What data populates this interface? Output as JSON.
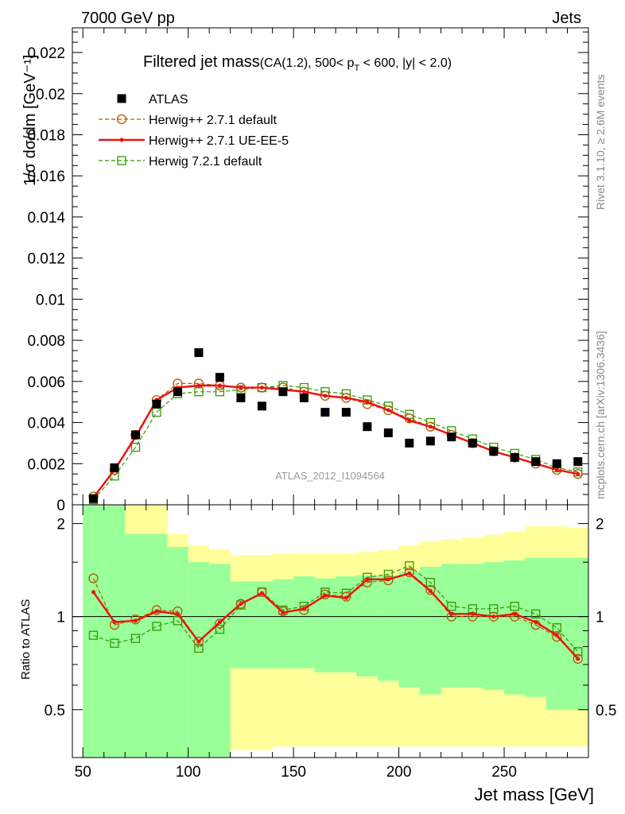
{
  "header": {
    "left": "7000 GeV pp",
    "right": "Jets"
  },
  "side_labels": {
    "rivet": "Rivet 3.1.10, ≥ 2.6M events",
    "mcplots": "mcplots.cern.ch [arXiv:1306.3436]"
  },
  "chart_data": [
    {
      "type": "scatter",
      "title_main": "Filtered jet mass",
      "title_sub_a": "(CA(1.2), 500< p",
      "title_sub_b": "T",
      "title_sub_c": " < 600, |y| < 2.0)",
      "ylabel": "1/σ dσ/dm [GeV⁻¹]",
      "watermark": "ATLAS_2012_I1094564",
      "ylim": [
        0,
        0.0232
      ],
      "xlim": [
        45,
        290
      ],
      "yticks": [
        0,
        0.002,
        0.004,
        0.006,
        0.008,
        0.01,
        0.012,
        0.014,
        0.016,
        0.018,
        0.02,
        0.022
      ],
      "ytick_labels": [
        "0",
        "0.002",
        "0.004",
        "0.006",
        "0.008",
        "0.01",
        "0.012",
        "0.014",
        "0.016",
        "0.018",
        "0.02",
        "0.022"
      ],
      "legend_position": "top-left",
      "x": [
        55,
        65,
        75,
        85,
        95,
        105,
        115,
        125,
        135,
        145,
        155,
        165,
        175,
        185,
        195,
        205,
        215,
        225,
        235,
        245,
        255,
        265,
        275,
        285
      ],
      "series": [
        {
          "name": "ATLAS",
          "style": "data",
          "color": "#000000",
          "values": [
            0.0003,
            0.0018,
            0.0034,
            0.0049,
            0.0055,
            0.0074,
            0.0062,
            0.0052,
            0.0048,
            0.0055,
            0.0052,
            0.0045,
            0.0045,
            0.0038,
            0.0035,
            0.003,
            0.0031,
            0.0033,
            0.003,
            0.0026,
            0.0023,
            0.0021,
            0.002,
            0.0021
          ]
        },
        {
          "name": "Herwig++ 2.7.1 default",
          "style": "circle-dashed",
          "color": "#b35900",
          "values": [
            0.0004,
            0.0017,
            0.0034,
            0.0051,
            0.0059,
            0.0059,
            0.0058,
            0.0057,
            0.0057,
            0.0057,
            0.0055,
            0.0053,
            0.0052,
            0.0049,
            0.0046,
            0.0042,
            0.0038,
            0.0034,
            0.003,
            0.0026,
            0.0023,
            0.002,
            0.0017,
            0.0015
          ]
        },
        {
          "name": "Herwig++ 2.7.1 UE-EE-5",
          "style": "solid",
          "color": "#ee1111",
          "values": [
            0.00035,
            0.0017,
            0.0033,
            0.0051,
            0.0057,
            0.0058,
            0.0058,
            0.0057,
            0.0057,
            0.0056,
            0.0055,
            0.0053,
            0.0052,
            0.005,
            0.0046,
            0.0041,
            0.0038,
            0.0034,
            0.003,
            0.0026,
            0.0023,
            0.002,
            0.0017,
            0.0015
          ]
        },
        {
          "name": "Herwig 7.2.1 default",
          "style": "square-dashed",
          "color": "#339900",
          "values": [
            0.00025,
            0.0014,
            0.0028,
            0.0045,
            0.0054,
            0.0055,
            0.0055,
            0.0056,
            0.0057,
            0.0058,
            0.0057,
            0.0055,
            0.0054,
            0.0051,
            0.0048,
            0.0044,
            0.004,
            0.0036,
            0.0032,
            0.0028,
            0.0025,
            0.0022,
            0.0018,
            0.0016
          ]
        }
      ]
    },
    {
      "type": "line",
      "ylabel": "Ratio to ATLAS",
      "xlabel": "Jet mass [GeV]",
      "ylim": [
        0.35,
        2.3
      ],
      "xlim": [
        45,
        290
      ],
      "xticks": [
        50,
        100,
        150,
        200,
        250
      ],
      "xtick_labels": [
        "50",
        "100",
        "150",
        "200",
        "250"
      ],
      "yticks": [
        0.5,
        1,
        2
      ],
      "ytick_labels": [
        "0.5",
        "1",
        "2"
      ],
      "reference_line": 1,
      "band_edges": [
        50,
        60,
        70,
        80,
        90,
        100,
        110,
        120,
        130,
        140,
        150,
        160,
        170,
        180,
        190,
        200,
        210,
        220,
        230,
        240,
        250,
        260,
        270,
        280,
        290
      ],
      "band_yellow": {
        "color": "#ffff99",
        "lo": [
          0.35,
          0.35,
          0.35,
          0.35,
          0.56,
          0.56,
          0.4,
          0.37,
          0.37,
          0.38,
          0.38,
          0.38,
          0.38,
          0.38,
          0.38,
          0.38,
          0.38,
          0.38,
          0.38,
          0.38,
          0.38,
          0.38,
          0.38,
          0.38
        ],
        "hi": [
          2.3,
          2.3,
          2.3,
          2.3,
          1.85,
          1.7,
          1.65,
          1.58,
          1.58,
          1.6,
          1.6,
          1.6,
          1.6,
          1.62,
          1.64,
          1.7,
          1.75,
          1.78,
          1.8,
          1.84,
          1.88,
          1.96,
          1.96,
          1.94
        ]
      },
      "band_green": {
        "color": "#99ff99",
        "lo": [
          0.35,
          0.35,
          0.35,
          0.35,
          0.35,
          0.35,
          0.35,
          0.68,
          0.68,
          0.68,
          0.68,
          0.66,
          0.66,
          0.64,
          0.62,
          0.59,
          0.56,
          0.59,
          0.59,
          0.58,
          0.56,
          0.55,
          0.5,
          0.5
        ],
        "hi": [
          2.3,
          2.3,
          1.85,
          1.85,
          1.68,
          1.5,
          1.48,
          1.3,
          1.3,
          1.32,
          1.35,
          1.33,
          1.35,
          1.36,
          1.36,
          1.4,
          1.45,
          1.48,
          1.48,
          1.5,
          1.52,
          1.55,
          1.55,
          1.55
        ]
      },
      "x": [
        55,
        65,
        75,
        85,
        95,
        105,
        115,
        125,
        135,
        145,
        155,
        165,
        175,
        185,
        195,
        205,
        215,
        225,
        235,
        245,
        255,
        265,
        275,
        285
      ],
      "series": [
        {
          "name": "Herwig++ 2.7.1 default",
          "style": "circle-dashed",
          "color": "#b35900",
          "values": [
            1.33,
            0.94,
            0.98,
            1.05,
            1.04,
            0.83,
            0.95,
            1.1,
            1.2,
            1.04,
            1.05,
            1.18,
            1.16,
            1.29,
            1.31,
            1.39,
            1.22,
            1.0,
            1.0,
            1.0,
            1.0,
            0.94,
            0.86,
            0.73
          ]
        },
        {
          "name": "Herwig++ 2.7.1 UE-EE-5",
          "style": "solid",
          "color": "#ee1111",
          "values": [
            1.2,
            0.96,
            0.97,
            1.04,
            1.02,
            0.83,
            0.96,
            1.1,
            1.19,
            1.03,
            1.06,
            1.17,
            1.15,
            1.32,
            1.32,
            1.38,
            1.21,
            1.02,
            1.02,
            1.0,
            1.02,
            0.96,
            0.87,
            0.73
          ]
        },
        {
          "name": "Herwig 7.2.1 default",
          "style": "square-dashed",
          "color": "#339900",
          "values": [
            0.87,
            0.82,
            0.85,
            0.93,
            0.97,
            0.79,
            0.91,
            1.09,
            1.2,
            1.05,
            1.08,
            1.2,
            1.19,
            1.34,
            1.37,
            1.46,
            1.29,
            1.08,
            1.06,
            1.06,
            1.08,
            1.02,
            0.92,
            0.77
          ]
        }
      ]
    }
  ]
}
